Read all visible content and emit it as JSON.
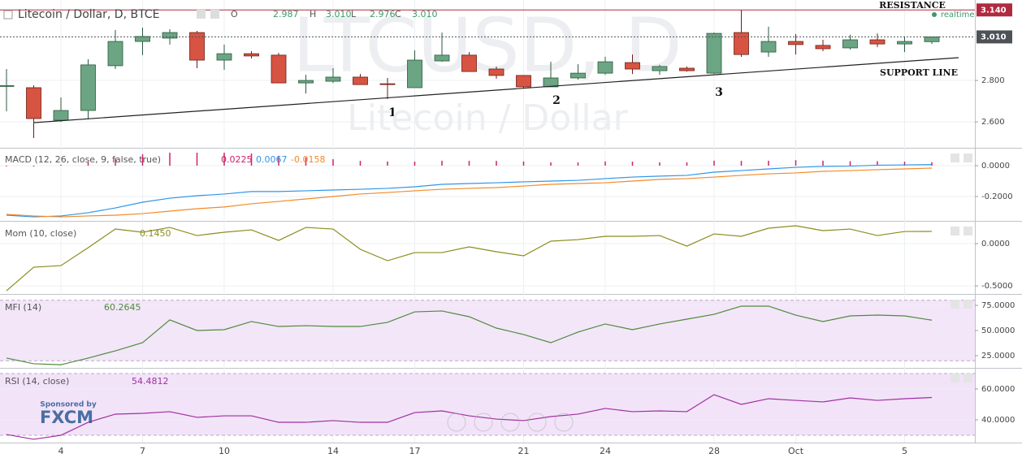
{
  "chart_data": [
    {
      "type": "candlestick",
      "title": "Litecoin / Dollar, D, BTCE",
      "header": [
        {
          "label": "O",
          "text": "2.987"
        },
        {
          "label": "H",
          "text": "3.010"
        },
        {
          "label": "L",
          "text": "2.976"
        },
        {
          "label": "C",
          "text": "3.010"
        }
      ],
      "status": "realtime",
      "watermark": "LTCUSD, D",
      "watermark_subtitle": "Litecoin / Dollar",
      "categories": [
        null,
        null,
        "4",
        null,
        null,
        "7",
        null,
        null,
        "10",
        null,
        null,
        null,
        "14",
        null,
        null,
        "17",
        null,
        null,
        null,
        "21",
        null,
        null,
        "24",
        null,
        null,
        null,
        "28",
        null,
        null,
        "Oct",
        null,
        null,
        null,
        "5",
        null
      ],
      "open": [
        2.773,
        2.765,
        2.608,
        2.655,
        2.871,
        2.988,
        3.004,
        3.031,
        2.898,
        2.929,
        2.922,
        2.788,
        2.796,
        2.816,
        2.784,
        2.765,
        2.894,
        2.922,
        2.855,
        2.824,
        2.769,
        2.812,
        2.835,
        2.886,
        2.847,
        2.859,
        2.835,
        3.031,
        2.937,
        2.988,
        2.969,
        2.957,
        2.996,
        2.976,
        2.987
      ],
      "high": [
        2.855,
        2.776,
        2.718,
        2.902,
        3.043,
        3.055,
        3.047,
        3.039,
        2.973,
        2.941,
        2.933,
        2.827,
        2.859,
        2.831,
        2.812,
        2.945,
        3.031,
        2.937,
        2.867,
        2.824,
        2.89,
        2.878,
        2.914,
        2.925,
        2.875,
        2.867,
        3.031,
        3.141,
        3.059,
        3.024,
        2.996,
        3.02,
        3.027,
        3.012,
        3.01
      ],
      "low": [
        2.651,
        2.522,
        2.6,
        2.612,
        2.855,
        2.922,
        2.973,
        2.859,
        2.851,
        2.906,
        2.788,
        2.737,
        2.788,
        2.78,
        2.71,
        2.765,
        2.89,
        2.843,
        2.808,
        2.761,
        2.769,
        2.804,
        2.827,
        2.831,
        2.827,
        2.843,
        2.831,
        2.914,
        2.914,
        2.925,
        2.941,
        2.949,
        2.961,
        2.937,
        2.976
      ],
      "close": [
        2.775,
        2.616,
        2.655,
        2.875,
        2.988,
        3.012,
        3.031,
        2.898,
        2.929,
        2.918,
        2.788,
        2.8,
        2.816,
        2.78,
        2.78,
        2.898,
        2.922,
        2.843,
        2.824,
        2.769,
        2.812,
        2.835,
        2.89,
        2.855,
        2.867,
        2.847,
        3.027,
        2.925,
        2.988,
        2.973,
        2.953,
        2.996,
        2.976,
        2.988,
        3.01
      ],
      "up_color": "#6ba583",
      "down_color": "#d75442",
      "ylim": [
        2.475,
        3.188
      ],
      "yticks": [
        {
          "value": 2.6,
          "label": "2.600"
        },
        {
          "value": 2.8,
          "label": "2.800"
        }
      ],
      "price_labels": [
        {
          "value": 3.01,
          "label": "3.010",
          "color": "#4d5257",
          "line": "dotted"
        },
        {
          "value": 3.14,
          "label": "3.140",
          "color": "#b02a3f",
          "line": "solid"
        }
      ],
      "resistance_label": "RESISTANCE",
      "support_label": "SUPPORT LINE",
      "annotations": [
        "1",
        "2",
        "3"
      ],
      "grid": true
    },
    {
      "type": "line",
      "title": "MACD (12, 26, close, 9, false, true)",
      "histogram": {
        "color": "#d0206a",
        "last_label": "0.0225",
        "values": [
          -0.005,
          -0.006,
          0.006,
          0.021,
          0.047,
          0.074,
          0.084,
          0.084,
          0.084,
          0.079,
          0.064,
          0.053,
          0.042,
          0.031,
          0.027,
          0.026,
          0.032,
          0.031,
          0.031,
          0.027,
          0.021,
          0.021,
          0.027,
          0.026,
          0.021,
          0.021,
          0.032,
          0.031,
          0.032,
          0.036,
          0.032,
          0.029,
          0.029,
          0.026,
          0.0225
        ]
      },
      "series": [
        {
          "color": "#2f96e8",
          "last_label": "0.0067",
          "values": [
            -0.321,
            -0.332,
            -0.326,
            -0.305,
            -0.274,
            -0.237,
            -0.211,
            -0.195,
            -0.184,
            -0.168,
            -0.168,
            -0.163,
            -0.158,
            -0.153,
            -0.147,
            -0.137,
            -0.121,
            -0.116,
            -0.111,
            -0.105,
            -0.1,
            -0.095,
            -0.084,
            -0.074,
            -0.068,
            -0.063,
            -0.042,
            -0.032,
            -0.021,
            -0.011,
            -0.005,
            -0.003,
            0.003,
            0.005,
            0.0067
          ]
        },
        {
          "color": "#f28a2a",
          "last_label": "-0.0158",
          "values": [
            -0.316,
            -0.326,
            -0.332,
            -0.326,
            -0.321,
            -0.311,
            -0.295,
            -0.279,
            -0.268,
            -0.247,
            -0.232,
            -0.216,
            -0.2,
            -0.184,
            -0.174,
            -0.163,
            -0.153,
            -0.147,
            -0.142,
            -0.132,
            -0.121,
            -0.116,
            -0.111,
            -0.1,
            -0.089,
            -0.084,
            -0.074,
            -0.063,
            -0.053,
            -0.047,
            -0.037,
            -0.032,
            -0.026,
            -0.021,
            -0.0158
          ]
        }
      ],
      "ylim": [
        -0.358,
        0.1105
      ],
      "yticks": [
        {
          "value": 0,
          "label": "0.0000"
        },
        {
          "value": -0.2,
          "label": "-0.2000"
        }
      ],
      "grid": true
    },
    {
      "type": "line",
      "title": "Mom (10, close)",
      "series": [
        {
          "color": "#8c8c1e",
          "last_label": "0.1450",
          "values": [
            -0.558,
            -0.279,
            -0.26,
            -0.048,
            0.173,
            0.135,
            0.192,
            0.096,
            0.135,
            0.163,
            0.038,
            0.192,
            0.173,
            -0.067,
            -0.202,
            -0.106,
            -0.106,
            -0.038,
            -0.096,
            -0.144,
            0.029,
            0.048,
            0.087,
            0.087,
            0.096,
            -0.029,
            0.115,
            0.087,
            0.183,
            0.212,
            0.154,
            0.173,
            0.096,
            0.144,
            0.145
          ]
        }
      ],
      "ylim": [
        -0.596,
        0.26
      ],
      "yticks": [
        {
          "value": 0,
          "label": "0.0000"
        },
        {
          "value": -0.5,
          "label": "-0.5000"
        }
      ],
      "grid": true
    },
    {
      "type": "line",
      "title": "MFI (14)",
      "band": [
        20,
        80
      ],
      "band_color": "#f3e6f9",
      "series": [
        {
          "color": "#4f8a3c",
          "last_label": "60.2645",
          "values": [
            22.6,
            17,
            16,
            22.6,
            29.8,
            37.9,
            60.5,
            50,
            50.8,
            58.9,
            54,
            54.8,
            54,
            54,
            58.1,
            68.5,
            69.4,
            63.7,
            52.4,
            46,
            37.9,
            48.4,
            56.5,
            50.8,
            56.5,
            61.3,
            66.1,
            74.2,
            74.2,
            65.3,
            58.9,
            64.5,
            65.3,
            64.5,
            60.2645
          ]
        }
      ],
      "ylim": [
        12.9,
        85.48
      ],
      "yticks": [
        {
          "value": 75,
          "label": "75.0000"
        },
        {
          "value": 50,
          "label": "50.0000"
        },
        {
          "value": 25,
          "label": "25.0000"
        }
      ],
      "grid": true
    },
    {
      "type": "line",
      "title": "RSI (14, close)",
      "band": [
        30,
        70
      ],
      "band_color": "#f2e3f9",
      "series": [
        {
          "color": "#a0309f",
          "last_label": "54.4812",
          "values": [
            30.5,
            27.4,
            30,
            38.4,
            43.7,
            44.2,
            45.3,
            41.6,
            42.6,
            42.6,
            38.4,
            38.4,
            39.5,
            38.4,
            38.4,
            44.7,
            45.8,
            42.6,
            40.5,
            39.5,
            42.1,
            43.7,
            47.4,
            45.3,
            45.8,
            45.3,
            56.3,
            50,
            53.7,
            52.6,
            51.6,
            54.2,
            52.6,
            53.7,
            54.4812
          ]
        }
      ],
      "ylim": [
        25.26,
        73.16
      ],
      "yticks": [
        {
          "value": 60,
          "label": "60.0000"
        },
        {
          "value": 40,
          "label": "40.0000"
        }
      ],
      "grid": true
    }
  ],
  "sponsor": {
    "text": "Sponsored by",
    "brand": "FXCM"
  }
}
